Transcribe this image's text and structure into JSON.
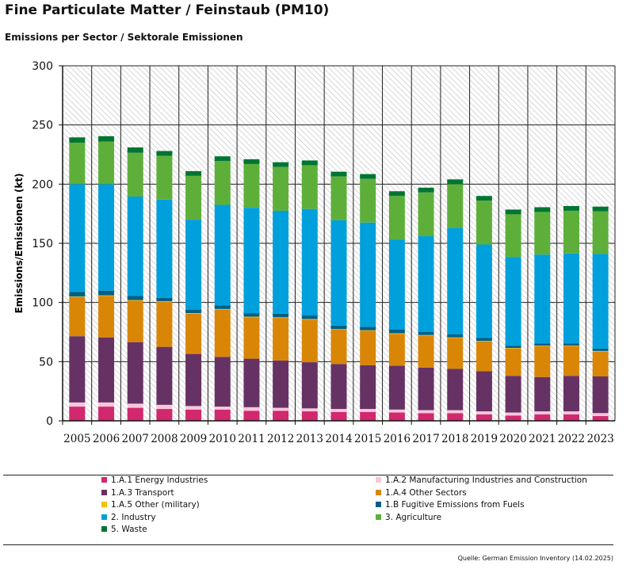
{
  "title": "Fine Particulate Matter / Feinstaub (PM10)",
  "subtitle": "Emissions per Sector / Sektorale Emissionen",
  "source": "Quelle: German Emission Inventory (14.02.2025)",
  "chart_data": {
    "type": "bar",
    "stacked": true,
    "ylabel": "Emissions/Emissionen (kt)",
    "xlabel": "",
    "ylim": [
      0,
      300
    ],
    "yticks": [
      0,
      50,
      100,
      150,
      200,
      250,
      300
    ],
    "grid": "horizontal and vertical, hatched background",
    "categories": [
      "2005",
      "2006",
      "2007",
      "2008",
      "2009",
      "2010",
      "2011",
      "2012",
      "2013",
      "2014",
      "2015",
      "2016",
      "2017",
      "2018",
      "2019",
      "2020",
      "2021",
      "2022",
      "2023"
    ],
    "series": [
      {
        "name": "1.A.1 Energy Industries",
        "color": "#d1286e",
        "values": [
          12,
          12,
          11,
          10,
          9.5,
          9.5,
          8.5,
          8.5,
          8,
          7.5,
          7.5,
          7,
          6.5,
          6.5,
          5.5,
          4.5,
          5.5,
          5.5,
          4
        ]
      },
      {
        "name": "1.A.2 Manufacturing Industries and Construction",
        "color": "#f8c7dc",
        "values": [
          3.5,
          3.5,
          3.5,
          3.5,
          3,
          2.5,
          3,
          2.5,
          2.5,
          2.5,
          2.5,
          2.5,
          2.5,
          2.5,
          2.5,
          2.5,
          2.5,
          2.5,
          2.5
        ]
      },
      {
        "name": "1.A.3 Transport",
        "color": "#663264",
        "values": [
          56,
          55,
          52,
          49,
          44,
          42,
          41,
          40,
          39,
          38,
          37,
          37,
          36,
          35,
          34,
          31,
          29,
          30,
          31
        ]
      },
      {
        "name": "1.A.4 Other Sectors",
        "color": "#d98607",
        "values": [
          33,
          35,
          35,
          38,
          34,
          40,
          35,
          36,
          36,
          29,
          29,
          27,
          27,
          26,
          25,
          23,
          26,
          25,
          21
        ]
      },
      {
        "name": "1.A.5 Other (military)",
        "color": "#fbbf00",
        "values": [
          0.5,
          0.5,
          0.5,
          0.5,
          0.5,
          0.5,
          0.5,
          0.5,
          0.5,
          0.5,
          0.5,
          0.5,
          0.5,
          0.5,
          0.5,
          0.5,
          0.5,
          0.5,
          0.5
        ]
      },
      {
        "name": "1.B Fugitive Emissions from Fuels",
        "color": "#005f85",
        "values": [
          4,
          4,
          3.5,
          3,
          3,
          3,
          3,
          3,
          3,
          3,
          3,
          3,
          2.5,
          2.5,
          2.5,
          2,
          2,
          2,
          2
        ]
      },
      {
        "name": "2. Industry",
        "color": "#00a0dc",
        "values": [
          91,
          90,
          84,
          83,
          76,
          85,
          89,
          87,
          90,
          89,
          88,
          76,
          81,
          90,
          79,
          75,
          75,
          76,
          80
        ]
      },
      {
        "name": "3. Agriculture",
        "color": "#5eaf3a",
        "values": [
          35,
          36,
          37,
          37,
          37,
          37,
          37,
          37,
          37,
          37,
          37,
          37,
          37,
          37,
          37,
          36,
          36,
          36,
          36
        ]
      },
      {
        "name": "5. Waste",
        "color": "#007533",
        "values": [
          4.5,
          4.5,
          4.5,
          4,
          4,
          4,
          4,
          4,
          4,
          4,
          4,
          4,
          4,
          4,
          4,
          4,
          4,
          4,
          4
        ]
      }
    ]
  }
}
